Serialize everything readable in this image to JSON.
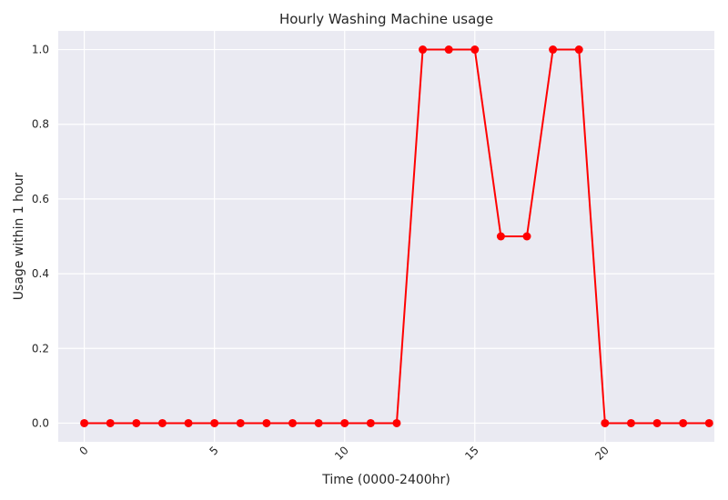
{
  "chart_data": {
    "type": "line",
    "title": "Hourly Washing Machine usage",
    "xlabel": "Time (0000-2400hr)",
    "ylabel": "Usage within 1 hour",
    "xlim": [
      -1,
      24.2
    ],
    "ylim": [
      -0.05,
      1.05
    ],
    "xticks": [
      0,
      5,
      10,
      15,
      20
    ],
    "yticks": [
      0.0,
      0.2,
      0.4,
      0.6,
      0.8,
      1.0
    ],
    "ytick_labels": [
      "0.0",
      "0.2",
      "0.4",
      "0.6",
      "0.8",
      "1.0"
    ],
    "grid": true,
    "background_color": "#eaeaf2",
    "series": [
      {
        "color": "#ff0000",
        "marker": "circle",
        "x": [
          0,
          1,
          2,
          3,
          4,
          5,
          6,
          7,
          8,
          9,
          10,
          11,
          12,
          13,
          14,
          15,
          16,
          17,
          18,
          19,
          20,
          21,
          22,
          23,
          24
        ],
        "values": [
          0,
          0,
          0,
          0,
          0,
          0,
          0,
          0,
          0,
          0,
          0,
          0,
          0,
          1,
          1,
          1,
          0.5,
          0.5,
          1,
          1,
          0,
          0,
          0,
          0,
          0
        ]
      }
    ]
  }
}
